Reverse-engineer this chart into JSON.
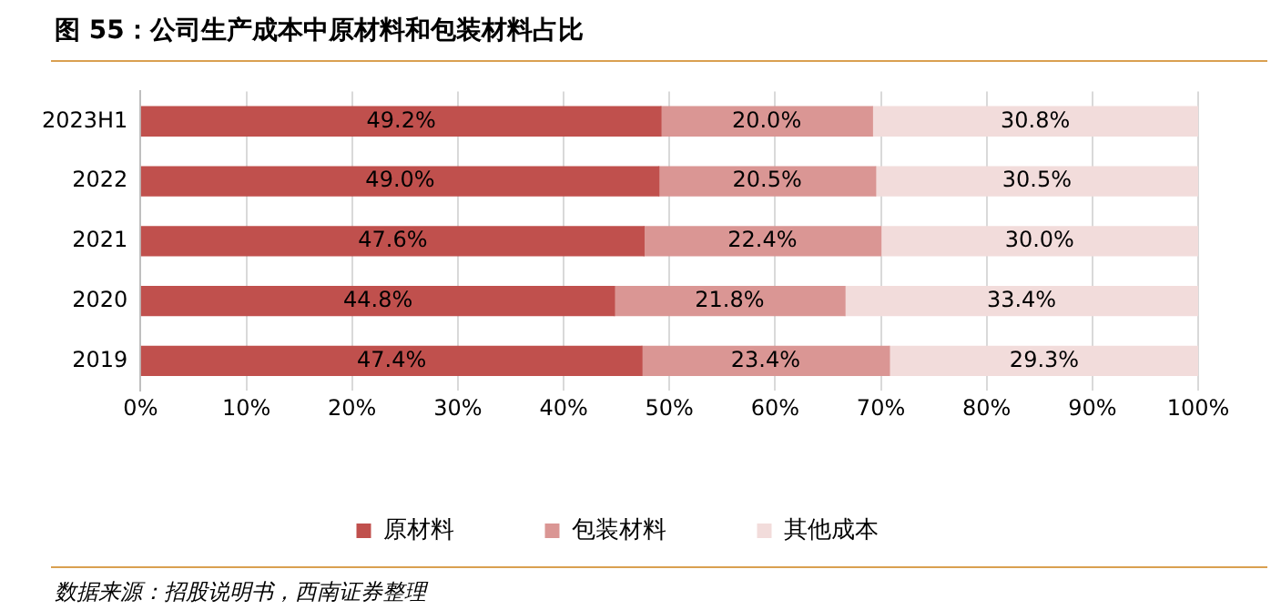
{
  "chart_data": {
    "type": "bar",
    "orientation": "horizontal",
    "stacked": true,
    "title": "图 55：公司生产成本中原材料和包装材料占比",
    "categories": [
      "2023H1",
      "2022",
      "2021",
      "2020",
      "2019"
    ],
    "series": [
      {
        "name": "原材料",
        "color": "#c0504d",
        "values": [
          49.2,
          49.0,
          47.6,
          44.8,
          47.4
        ],
        "value_labels": [
          "49.2%",
          "49.0%",
          "47.6%",
          "44.8%",
          "47.4%"
        ]
      },
      {
        "name": "包装材料",
        "color": "#da9694",
        "values": [
          20.0,
          20.5,
          22.4,
          21.8,
          23.4
        ],
        "value_labels": [
          "20.0%",
          "20.5%",
          "22.4%",
          "21.8%",
          "23.4%"
        ]
      },
      {
        "name": "其他成本",
        "color": "#f2dcdb",
        "values": [
          30.8,
          30.5,
          30.0,
          33.4,
          29.3
        ],
        "value_labels": [
          "30.8%",
          "30.5%",
          "30.0%",
          "33.4%",
          "29.3%"
        ]
      }
    ],
    "xlim": [
      0,
      100
    ],
    "xticks": [
      {
        "value": 0,
        "label": "0%"
      },
      {
        "value": 10,
        "label": "10%"
      },
      {
        "value": 20,
        "label": "20%"
      },
      {
        "value": 30,
        "label": "30%"
      },
      {
        "value": 40,
        "label": "40%"
      },
      {
        "value": 50,
        "label": "50%"
      },
      {
        "value": 60,
        "label": "60%"
      },
      {
        "value": 70,
        "label": "70%"
      },
      {
        "value": 80,
        "label": "80%"
      },
      {
        "value": 90,
        "label": "90%"
      },
      {
        "value": 100,
        "label": "100%"
      }
    ],
    "grid": "x",
    "legend": "bottom",
    "annotations": [
      "数据来源：招股说明书，西南证券整理"
    ]
  }
}
